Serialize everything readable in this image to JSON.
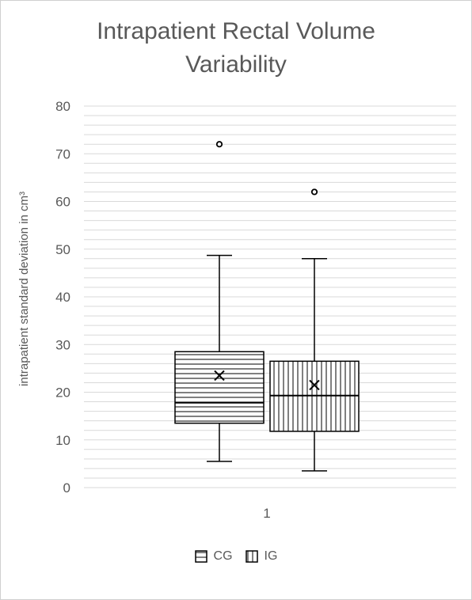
{
  "chart_data": {
    "type": "box",
    "title": [
      "Intrapatient Rectal Volume",
      "Variability"
    ],
    "ylabel": "intrapatient standard deviation in cm³",
    "xlabel": "",
    "categories": [
      "1"
    ],
    "ylim": [
      0,
      80
    ],
    "yticks": [
      0,
      10,
      20,
      30,
      40,
      50,
      60,
      70,
      80
    ],
    "minor_gridlines": true,
    "legend_position": "bottom",
    "series": [
      {
        "name": "CG",
        "pattern": "horizontal-lines",
        "whisker_low": 5.5,
        "q1": 13.5,
        "median": 17.8,
        "q3": 28.5,
        "whisker_high": 48.7,
        "mean": 23.5,
        "outliers": [
          72
        ]
      },
      {
        "name": "IG",
        "pattern": "vertical-lines",
        "whisker_low": 3.5,
        "q1": 11.8,
        "median": 19.3,
        "q3": 26.5,
        "whisker_high": 48.0,
        "mean": 21.5,
        "outliers": [
          62
        ]
      }
    ],
    "colors": {
      "gridline": "#d9d9d9",
      "stroke": "#000000",
      "text": "#595959"
    }
  }
}
